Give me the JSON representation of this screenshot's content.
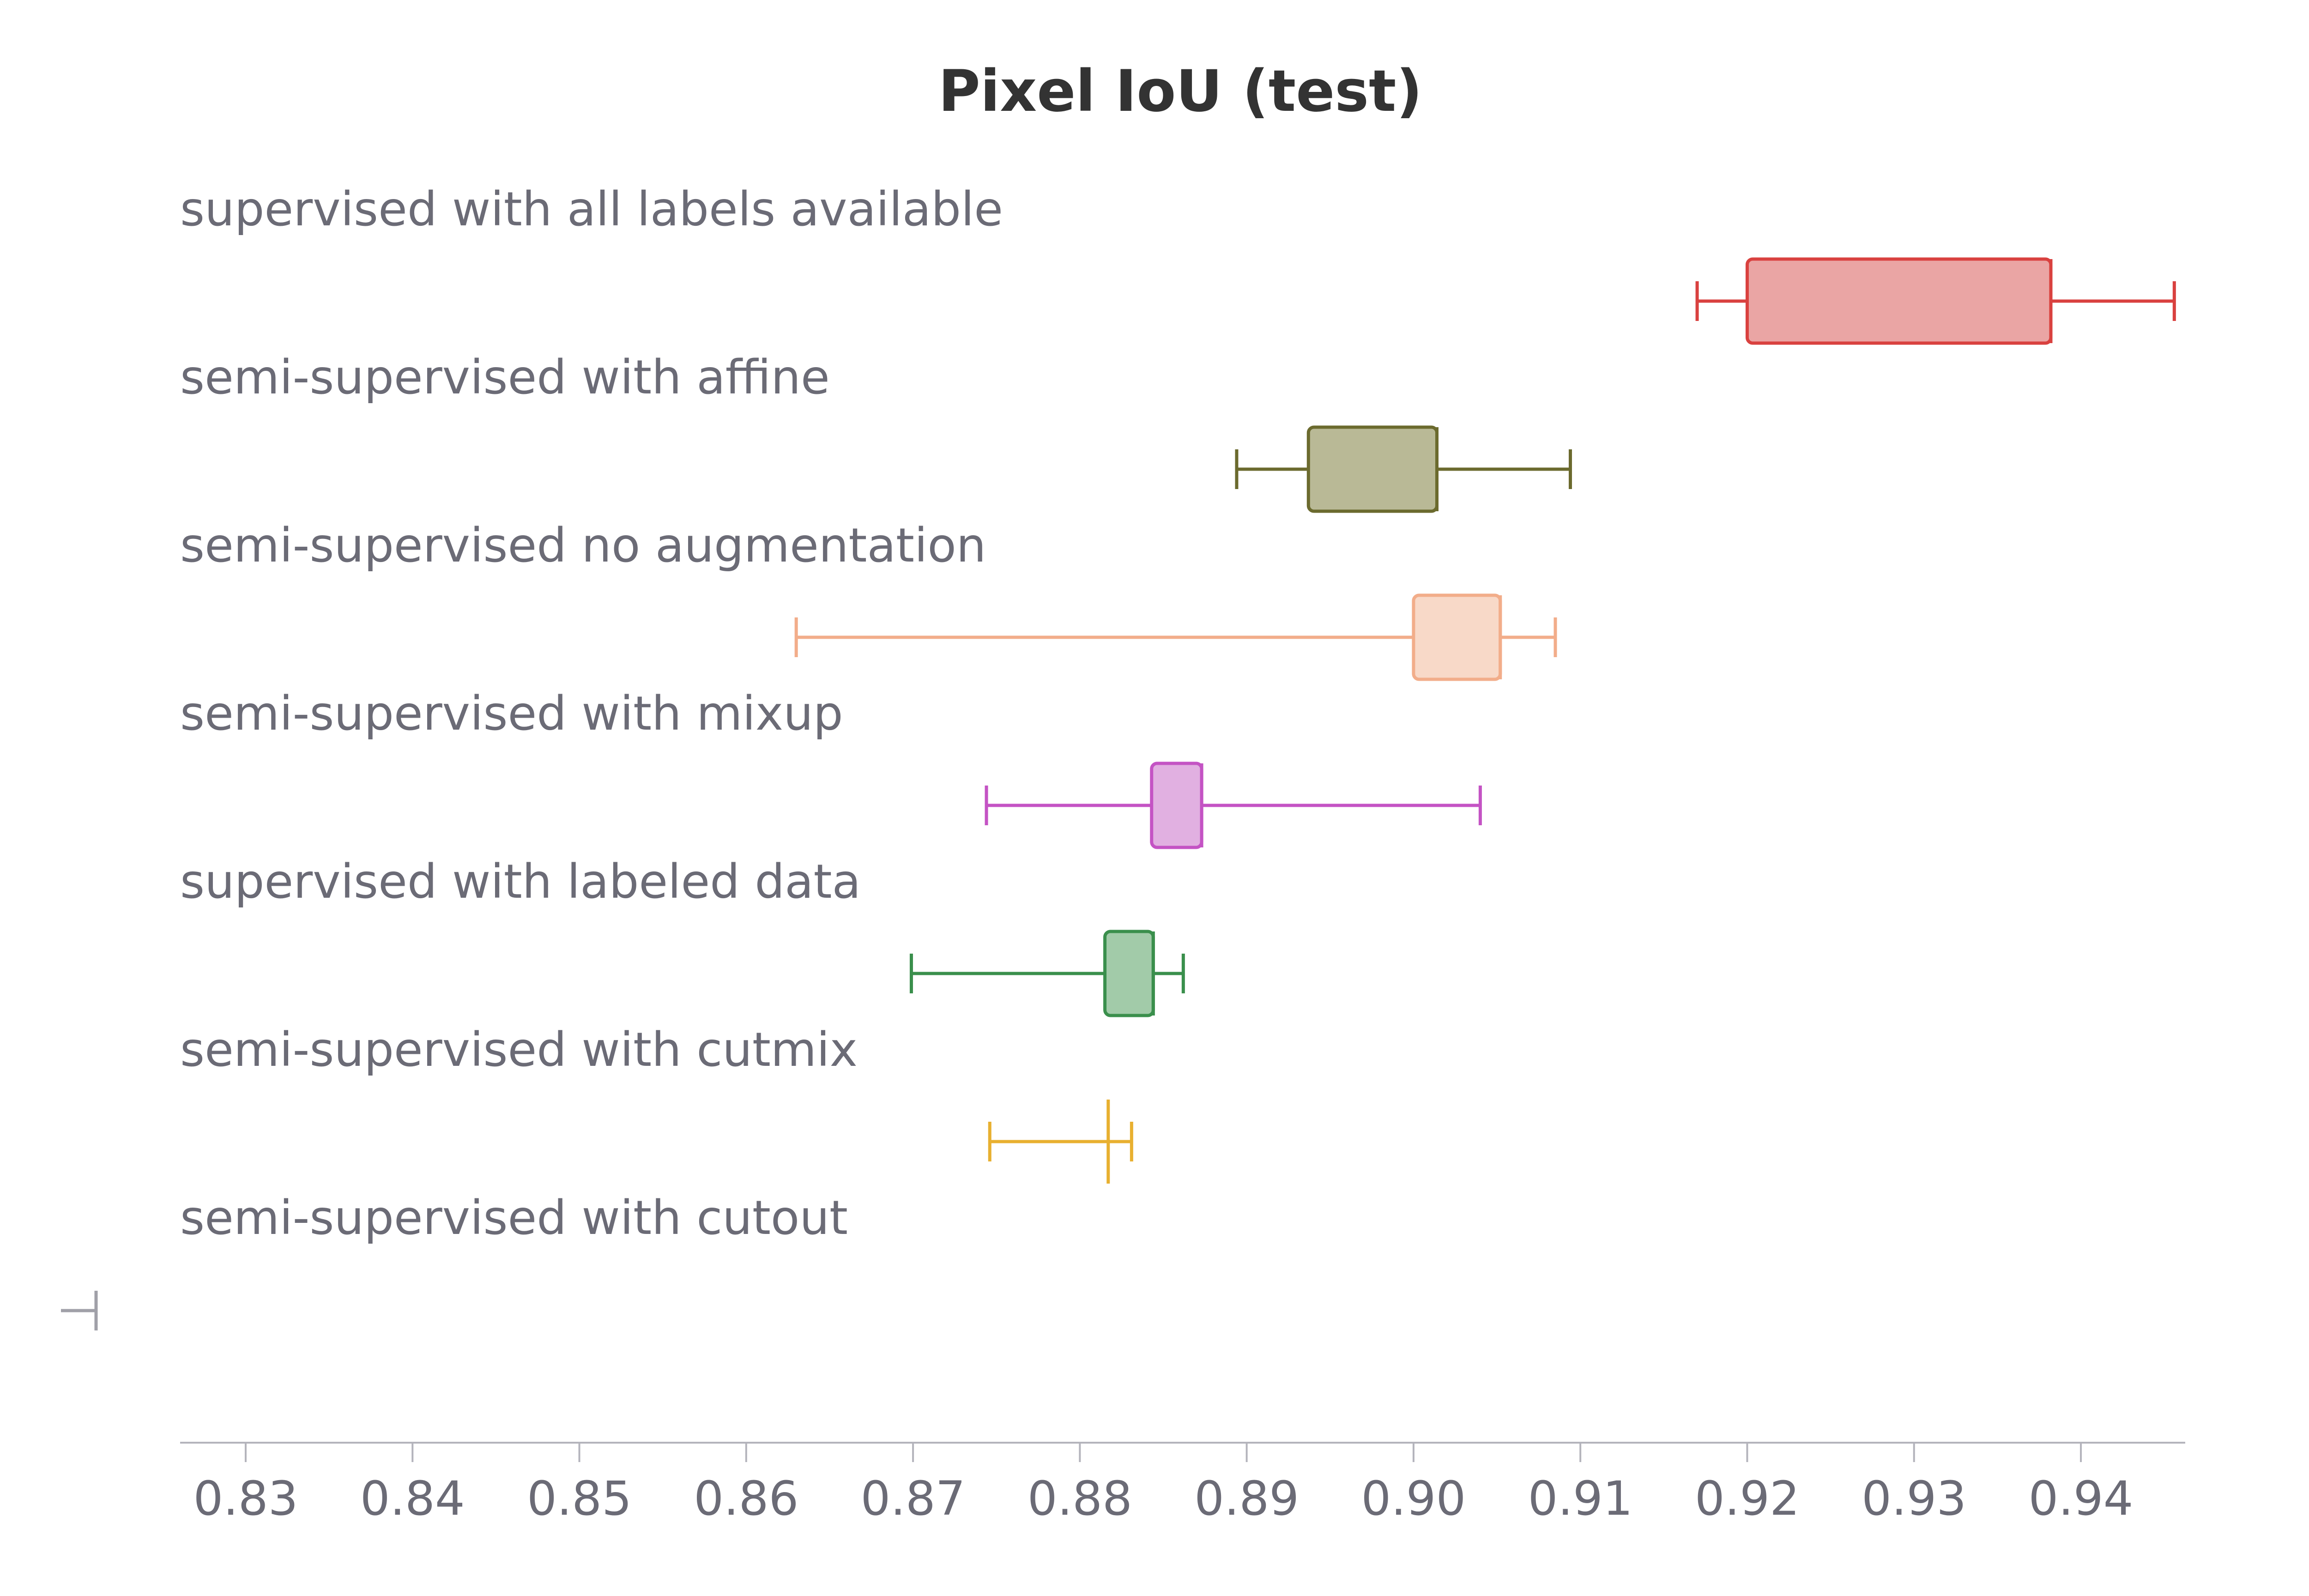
{
  "chart_data": {
    "type": "box",
    "title": "Pixel IoU (test)",
    "xlabel": "",
    "ylabel": "",
    "xlim": [
      0.826,
      0.9455
    ],
    "xticks": [
      "0.83",
      "0.84",
      "0.85",
      "0.86",
      "0.87",
      "0.88",
      "0.89",
      "0.90",
      "0.91",
      "0.92",
      "0.93",
      "0.94"
    ],
    "grid": false,
    "series": [
      {
        "name": "supervised with all labels available",
        "color": "#d9413f",
        "fill": "#eaa5a4",
        "min": 0.917,
        "q1": 0.92,
        "median": 0.9382,
        "q3": 0.9382,
        "max": 0.9456
      },
      {
        "name": "semi-supervised with affine",
        "color": "#6b6a2e",
        "fill": "#b9b996",
        "min": 0.8894,
        "q1": 0.8937,
        "median": 0.9014,
        "q3": 0.9014,
        "max": 0.9094
      },
      {
        "name": "semi-supervised no augmentation",
        "color": "#f2ad8a",
        "fill": "#f8d9c8",
        "min": 0.863,
        "q1": 0.9,
        "median": 0.9052,
        "q3": 0.9052,
        "max": 0.9085
      },
      {
        "name": "semi-supervised with mixup",
        "color": "#c453c4",
        "fill": "#e1b0e1",
        "min": 0.8744,
        "q1": 0.8843,
        "median": 0.8873,
        "q3": 0.8873,
        "max": 0.904
      },
      {
        "name": "supervised with labeled data",
        "color": "#3a8f4c",
        "fill": "#a2cba9",
        "min": 0.8699,
        "q1": 0.8815,
        "median": 0.8844,
        "q3": 0.8844,
        "max": 0.8862
      },
      {
        "name": "semi-supervised with cutmix",
        "color": "#e8b030",
        "fill": "#f3d98f",
        "min": 0.8746,
        "q1": 0.8817,
        "median": 0.8817,
        "q3": 0.8817,
        "max": 0.8831
      },
      {
        "name": "semi-supervised with cutout",
        "color": "#a0a0a8",
        "fill": "#d0d0d6",
        "min": 0.8243,
        "q1": 0.8243,
        "median": 0.8243,
        "q3": 0.8243,
        "max": 0.8243
      }
    ]
  }
}
